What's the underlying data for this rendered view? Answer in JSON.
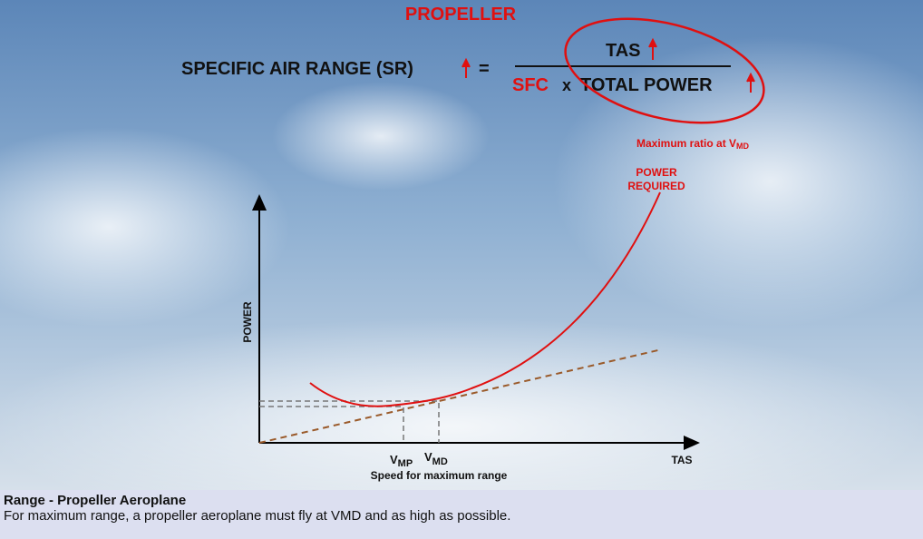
{
  "header": {
    "title": "PROPELLER"
  },
  "formula": {
    "lhs": "SPECIFIC AIR RANGE (SR)",
    "equals": "=",
    "numerator": "TAS",
    "denominator_sfc": "SFC",
    "times": "x",
    "denominator_power": "TOTAL POWER"
  },
  "annotation": {
    "text": "Maximum ratio at V",
    "subscript": "MD"
  },
  "curve_label": {
    "lines": [
      "POWER",
      "REQUIRED"
    ]
  },
  "axes": {
    "y_label": "POWER",
    "x_label": "TAS"
  },
  "speeds": {
    "vmp": {
      "v": "V",
      "sub": "MP"
    },
    "vmd": {
      "v": "V",
      "sub": "MD"
    },
    "caption": "Speed for maximum range"
  },
  "caption": {
    "title": "Range - Propeller Aeroplane",
    "text": "For maximum range, a propeller aeroplane must fly at VMD and as high as possible."
  }
}
